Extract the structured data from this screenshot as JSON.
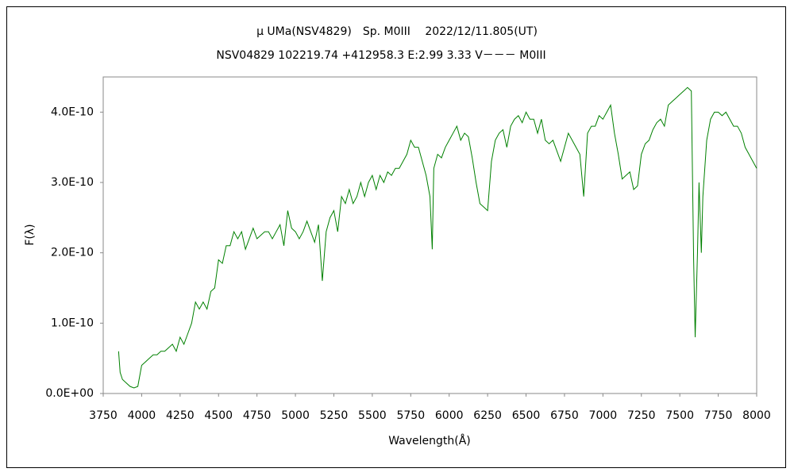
{
  "chart_data": {
    "type": "line",
    "title": "μ UMa(NSV4829)　Sp. M0III　 2022/12/11.805(UT)",
    "subtitle": "NSV04829 102219.74 +412958.3 E:2.99 3.33 V－－－ M0III",
    "xlabel": "Wavelength(Å)",
    "ylabel": "F(λ)",
    "xlim": [
      3750,
      8000
    ],
    "xticks": [
      3750,
      4000,
      4250,
      4500,
      4750,
      5000,
      5250,
      5500,
      5750,
      6000,
      6250,
      6500,
      6750,
      7000,
      7250,
      7500,
      7750,
      8000
    ],
    "ylim": [
      0,
      4.5e-10
    ],
    "yticks": [
      {
        "value": 0,
        "label": "0.0E+00"
      },
      {
        "value": 1e-10,
        "label": "1.0E-10"
      },
      {
        "value": 2e-10,
        "label": "2.0E-10"
      },
      {
        "value": 3e-10,
        "label": "3.0E-10"
      },
      {
        "value": 4e-10,
        "label": "4.0E-10"
      }
    ],
    "grid": false,
    "x": [
      3850,
      3860,
      3875,
      3900,
      3925,
      3950,
      3975,
      4000,
      4025,
      4050,
      4075,
      4100,
      4125,
      4150,
      4175,
      4200,
      4225,
      4250,
      4275,
      4300,
      4325,
      4350,
      4375,
      4400,
      4425,
      4450,
      4475,
      4500,
      4525,
      4550,
      4575,
      4600,
      4625,
      4650,
      4675,
      4700,
      4725,
      4750,
      4775,
      4800,
      4825,
      4850,
      4875,
      4900,
      4925,
      4950,
      4975,
      5000,
      5025,
      5050,
      5075,
      5100,
      5125,
      5150,
      5175,
      5200,
      5225,
      5250,
      5275,
      5300,
      5325,
      5350,
      5375,
      5400,
      5425,
      5450,
      5475,
      5500,
      5525,
      5550,
      5575,
      5600,
      5625,
      5650,
      5675,
      5700,
      5725,
      5750,
      5775,
      5800,
      5825,
      5850,
      5875,
      5890,
      5900,
      5925,
      5950,
      5975,
      6000,
      6025,
      6050,
      6075,
      6100,
      6125,
      6150,
      6175,
      6200,
      6225,
      6250,
      6275,
      6300,
      6325,
      6350,
      6375,
      6400,
      6425,
      6450,
      6475,
      6500,
      6525,
      6550,
      6575,
      6600,
      6625,
      6650,
      6675,
      6700,
      6725,
      6750,
      6775,
      6800,
      6825,
      6850,
      6875,
      6900,
      6925,
      6950,
      6975,
      7000,
      7025,
      7050,
      7075,
      7100,
      7125,
      7150,
      7175,
      7200,
      7225,
      7250,
      7275,
      7300,
      7325,
      7350,
      7375,
      7400,
      7425,
      7450,
      7475,
      7500,
      7525,
      7550,
      7575,
      7590,
      7600,
      7615,
      7625,
      7640,
      7650,
      7675,
      7700,
      7725,
      7750,
      7775,
      7800,
      7825,
      7850,
      7875,
      7900,
      7925,
      7950,
      7975,
      8000
    ],
    "series": [
      {
        "color": "#008000",
        "values": [
          6e-11,
          3e-11,
          2e-11,
          1.5e-11,
          1e-11,
          8e-12,
          1e-11,
          4e-11,
          4.5e-11,
          5e-11,
          5.5e-11,
          5.5e-11,
          6e-11,
          6e-11,
          6.5e-11,
          7e-11,
          6e-11,
          8e-11,
          7e-11,
          8.5e-11,
          1e-10,
          1.3e-10,
          1.2e-10,
          1.3e-10,
          1.2e-10,
          1.45e-10,
          1.5e-10,
          1.9e-10,
          1.85e-10,
          2.1e-10,
          2.1e-10,
          2.3e-10,
          2.2e-10,
          2.3e-10,
          2.05e-10,
          2.2e-10,
          2.35e-10,
          2.2e-10,
          2.25e-10,
          2.3e-10,
          2.3e-10,
          2.2e-10,
          2.3e-10,
          2.4e-10,
          2.1e-10,
          2.6e-10,
          2.35e-10,
          2.3e-10,
          2.2e-10,
          2.3e-10,
          2.45e-10,
          2.3e-10,
          2.15e-10,
          2.4e-10,
          1.6e-10,
          2.3e-10,
          2.5e-10,
          2.6e-10,
          2.3e-10,
          2.8e-10,
          2.7e-10,
          2.9e-10,
          2.7e-10,
          2.8e-10,
          3e-10,
          2.8e-10,
          3e-10,
          3.1e-10,
          2.9e-10,
          3.1e-10,
          3e-10,
          3.15e-10,
          3.1e-10,
          3.2e-10,
          3.2e-10,
          3.3e-10,
          3.4e-10,
          3.6e-10,
          3.5e-10,
          3.5e-10,
          3.3e-10,
          3.1e-10,
          2.8e-10,
          2.05e-10,
          3.2e-10,
          3.4e-10,
          3.35e-10,
          3.5e-10,
          3.6e-10,
          3.7e-10,
          3.8e-10,
          3.6e-10,
          3.7e-10,
          3.65e-10,
          3.35e-10,
          3e-10,
          2.7e-10,
          2.65e-10,
          2.6e-10,
          3.3e-10,
          3.6e-10,
          3.7e-10,
          3.75e-10,
          3.5e-10,
          3.8e-10,
          3.9e-10,
          3.95e-10,
          3.85e-10,
          4e-10,
          3.9e-10,
          3.9e-10,
          3.7e-10,
          3.9e-10,
          3.6e-10,
          3.55e-10,
          3.6e-10,
          3.45e-10,
          3.3e-10,
          3.5e-10,
          3.7e-10,
          3.6e-10,
          3.5e-10,
          3.4e-10,
          2.8e-10,
          3.7e-10,
          3.8e-10,
          3.8e-10,
          3.95e-10,
          3.9e-10,
          4e-10,
          4.1e-10,
          3.7e-10,
          3.4e-10,
          3.05e-10,
          3.1e-10,
          3.15e-10,
          2.9e-10,
          2.95e-10,
          3.4e-10,
          3.55e-10,
          3.6e-10,
          3.75e-10,
          3.85e-10,
          3.9e-10,
          3.8e-10,
          4.1e-10,
          4.15e-10,
          4.2e-10,
          4.25e-10,
          4.3e-10,
          4.35e-10,
          4.3e-10,
          1.9e-10,
          8e-11,
          2e-10,
          3e-10,
          2e-10,
          2.8e-10,
          3.6e-10,
          3.9e-10,
          4e-10,
          4e-10,
          3.95e-10,
          4e-10,
          3.9e-10,
          3.8e-10,
          3.8e-10,
          3.7e-10,
          3.5e-10,
          3.4e-10,
          3.3e-10,
          3.2e-10
        ]
      }
    ]
  }
}
